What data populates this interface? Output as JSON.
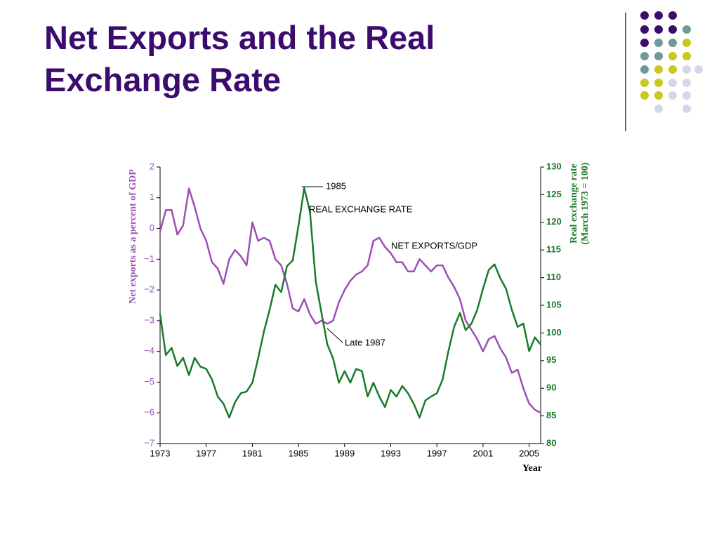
{
  "title": "Net Exports and the Real Exchange Rate",
  "chart_data": {
    "type": "line",
    "ylabel": "Net exports as a percent of GDP",
    "y2label": [
      "Real exchange rate",
      "(March 1973 = 100)"
    ],
    "xlabel": "Year",
    "annotations": [
      "1985",
      "REAL EXCHANGE RATE",
      "NET EXPORTS/GDP",
      "Late 1987"
    ],
    "x": [
      1973,
      1973.5,
      1974,
      1974.5,
      1975,
      1975.5,
      1976,
      1976.5,
      1977,
      1977.5,
      1978,
      1978.5,
      1979,
      1979.5,
      1980,
      1980.5,
      1981,
      1981.5,
      1982,
      1982.5,
      1983,
      1983.5,
      1984,
      1984.5,
      1985,
      1985.5,
      1986,
      1986.5,
      1987,
      1987.5,
      1988,
      1988.5,
      1989,
      1989.5,
      1990,
      1990.5,
      1991,
      1991.5,
      1992,
      1992.5,
      1993,
      1993.5,
      1994,
      1994.5,
      1995,
      1995.5,
      1996,
      1996.5,
      1997,
      1997.5,
      1998,
      1998.5,
      1999,
      1999.5,
      2000,
      2000.5,
      2001,
      2001.5,
      2002,
      2002.5,
      2003,
      2003.5,
      2004,
      2004.5,
      2005,
      2005.5,
      2006
    ],
    "series": [
      {
        "name": "NET EXPORTS/GDP",
        "color": "#9b4fb5",
        "axis": "y",
        "values": [
          -0.1,
          0.6,
          0.6,
          -0.2,
          0.1,
          1.3,
          0.7,
          0.0,
          -0.4,
          -1.1,
          -1.3,
          -1.8,
          -1.0,
          -0.7,
          -0.9,
          -1.2,
          0.2,
          -0.4,
          -0.3,
          -0.4,
          -1.0,
          -1.2,
          -1.8,
          -2.6,
          -2.7,
          -2.3,
          -2.8,
          -3.1,
          -3.0,
          -3.1,
          -3.0,
          -2.4,
          -2.0,
          -1.7,
          -1.5,
          -1.4,
          -1.2,
          -0.4,
          -0.3,
          -0.6,
          -0.8,
          -1.1,
          -1.1,
          -1.4,
          -1.4,
          -1.0,
          -1.2,
          -1.4,
          -1.2,
          -1.2,
          -1.6,
          -1.9,
          -2.3,
          -3.0,
          -3.3,
          -3.6,
          -4.0,
          -3.6,
          -3.5,
          -3.9,
          -4.2,
          -4.7,
          -4.6,
          -5.2,
          -5.7,
          -5.9,
          -6.0
        ]
      },
      {
        "name": "REAL EXCHANGE RATE",
        "color": "#1a7a2a",
        "axis": "y2",
        "values": [
          103.4,
          96,
          97.3,
          94,
          95.5,
          92.4,
          95.5,
          93.9,
          93.5,
          91.6,
          88.5,
          87.2,
          84.7,
          87.5,
          89.1,
          89.4,
          91,
          95.4,
          100.2,
          104.2,
          108.7,
          107.4,
          112.1,
          113.1,
          119.4,
          126.2,
          121.9,
          109.3,
          103.6,
          97.9,
          95.4,
          91,
          93.1,
          91,
          93.5,
          93.1,
          88.5,
          91,
          88.5,
          86.6,
          89.7,
          88.5,
          90.4,
          89.1,
          87.2,
          84.7,
          87.8,
          88.5,
          89.1,
          91.6,
          96.7,
          101.1,
          103.6,
          100.5,
          101.7,
          104.2,
          108,
          111.4,
          112.4,
          109.9,
          108,
          104.2,
          101.1,
          101.7,
          96.7,
          99.2,
          97.9
        ]
      }
    ],
    "xlim": [
      1973,
      2006
    ],
    "xticks": [
      1973,
      1977,
      1981,
      1985,
      1989,
      1993,
      1997,
      2001,
      2005
    ],
    "ylim": [
      -7,
      2
    ],
    "yticks": [
      {
        "value": -7,
        "label": "−7"
      },
      {
        "value": -6,
        "label": "−6"
      },
      {
        "value": -5,
        "label": "−5"
      },
      {
        "value": -4,
        "label": "−4"
      },
      {
        "value": -3,
        "label": "−3"
      },
      {
        "value": -2,
        "label": "−2"
      },
      {
        "value": -1,
        "label": "−1"
      },
      0,
      1,
      2
    ],
    "y2lim": [
      80,
      130
    ],
    "y2ticks": [
      80,
      85,
      90,
      95,
      100,
      105,
      110,
      115,
      120,
      125,
      130
    ],
    "grid": false
  }
}
